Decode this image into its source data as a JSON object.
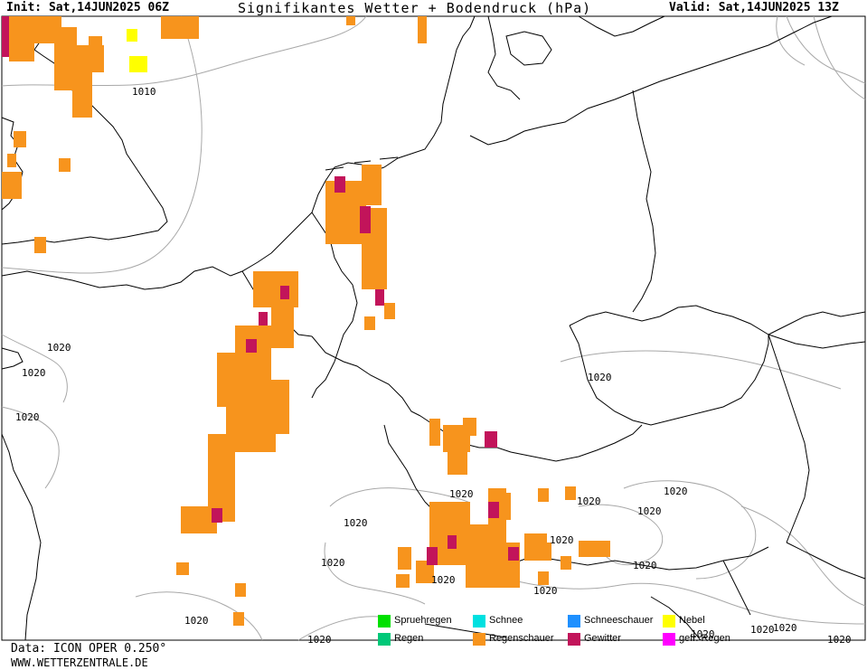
{
  "header": {
    "init": "Init: Sat,14JUN2025 06Z",
    "title": "Signifikantes Wetter + Bodendruck (hPa)",
    "valid": "Valid: Sat,14JUN2025 13Z"
  },
  "footer": {
    "data_source": "Data: ICON OPER 0.250°",
    "website": "WWW.WETTERZENTRALE.DE"
  },
  "colors": {
    "coast": "#000000",
    "isobar": "#a8a8a8",
    "regenschauer": "#f7941d",
    "gewitter": "#c2145a",
    "nebel": "#ffff00",
    "spruehregen": "#00e000",
    "schnee": "#00e0e0",
    "schneeschauer": "#1e90ff",
    "regen": "#00c878",
    "gefr_regen": "#ff00ff"
  },
  "legend": [
    {
      "label": "Spruehregen",
      "color": "#00e000"
    },
    {
      "label": "Schnee",
      "color": "#00e0e0"
    },
    {
      "label": "Schneeschauer",
      "color": "#1e90ff"
    },
    {
      "label": "Nebel",
      "color": "#ffff00"
    },
    {
      "label": "Regen",
      "color": "#00c878"
    },
    {
      "label": "Regenschauer",
      "color": "#f7941d"
    },
    {
      "label": "Gewitter",
      "color": "#c2145a"
    },
    {
      "label": "gefr. Regen",
      "color": "#ff00ff"
    }
  ],
  "isobar_labels": [
    "1010",
    "1020",
    "1020",
    "1020",
    "1020",
    "1020",
    "1020",
    "1020",
    "1020",
    "1020",
    "1020",
    "1020",
    "1020",
    "1020",
    "1020",
    "1020",
    "1020",
    "1020",
    "1020",
    "1020",
    "1020"
  ]
}
